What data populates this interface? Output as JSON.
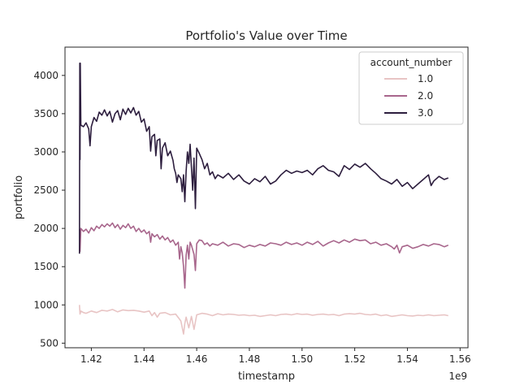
{
  "chart_data": {
    "type": "line",
    "title": "Portfolio's Value over Time",
    "xlabel": "timestamp",
    "ylabel": "portfolio",
    "x_offset_label": "1e9",
    "xlim": [
      1.41,
      1.563
    ],
    "ylim": [
      440,
      4370
    ],
    "x_ticks": [
      1.42,
      1.44,
      1.46,
      1.48,
      1.5,
      1.52,
      1.54,
      1.56
    ],
    "x_tick_labels": [
      "1.42",
      "1.44",
      "1.46",
      "1.48",
      "1.50",
      "1.52",
      "1.54",
      "1.56"
    ],
    "y_ticks": [
      500,
      1000,
      1500,
      2000,
      2500,
      3000,
      3500,
      4000
    ],
    "y_tick_labels": [
      "500",
      "1000",
      "1500",
      "2000",
      "2500",
      "3000",
      "3500",
      "4000"
    ],
    "grid": false,
    "legend": {
      "title": "account_number",
      "placement": "top-right"
    },
    "series": [
      {
        "name": "1.0",
        "color": "#e8c4c4",
        "points": [
          [
            1.4155,
            1000
          ],
          [
            1.4157,
            880
          ],
          [
            1.416,
            920
          ],
          [
            1.417,
            900
          ],
          [
            1.418,
            890
          ],
          [
            1.42,
            920
          ],
          [
            1.422,
            900
          ],
          [
            1.424,
            930
          ],
          [
            1.426,
            920
          ],
          [
            1.428,
            940
          ],
          [
            1.43,
            910
          ],
          [
            1.432,
            935
          ],
          [
            1.434,
            925
          ],
          [
            1.436,
            930
          ],
          [
            1.438,
            920
          ],
          [
            1.44,
            905
          ],
          [
            1.442,
            920
          ],
          [
            1.443,
            860
          ],
          [
            1.444,
            900
          ],
          [
            1.445,
            840
          ],
          [
            1.446,
            890
          ],
          [
            1.448,
            900
          ],
          [
            1.45,
            870
          ],
          [
            1.452,
            880
          ],
          [
            1.454,
            790
          ],
          [
            1.455,
            620
          ],
          [
            1.4555,
            760
          ],
          [
            1.456,
            840
          ],
          [
            1.457,
            700
          ],
          [
            1.458,
            850
          ],
          [
            1.459,
            680
          ],
          [
            1.46,
            870
          ],
          [
            1.462,
            890
          ],
          [
            1.464,
            880
          ],
          [
            1.466,
            860
          ],
          [
            1.468,
            885
          ],
          [
            1.47,
            870
          ],
          [
            1.472,
            880
          ],
          [
            1.474,
            875
          ],
          [
            1.476,
            865
          ],
          [
            1.478,
            870
          ],
          [
            1.48,
            860
          ],
          [
            1.482,
            865
          ],
          [
            1.484,
            850
          ],
          [
            1.486,
            860
          ],
          [
            1.488,
            870
          ],
          [
            1.49,
            860
          ],
          [
            1.492,
            875
          ],
          [
            1.494,
            880
          ],
          [
            1.496,
            870
          ],
          [
            1.498,
            885
          ],
          [
            1.5,
            875
          ],
          [
            1.502,
            880
          ],
          [
            1.504,
            865
          ],
          [
            1.506,
            875
          ],
          [
            1.508,
            880
          ],
          [
            1.51,
            870
          ],
          [
            1.512,
            875
          ],
          [
            1.514,
            860
          ],
          [
            1.516,
            880
          ],
          [
            1.518,
            885
          ],
          [
            1.52,
            880
          ],
          [
            1.522,
            890
          ],
          [
            1.524,
            875
          ],
          [
            1.526,
            870
          ],
          [
            1.528,
            880
          ],
          [
            1.53,
            860
          ],
          [
            1.532,
            870
          ],
          [
            1.534,
            850
          ],
          [
            1.536,
            860
          ],
          [
            1.538,
            870
          ],
          [
            1.54,
            860
          ],
          [
            1.542,
            855
          ],
          [
            1.544,
            865
          ],
          [
            1.546,
            860
          ],
          [
            1.548,
            870
          ],
          [
            1.55,
            860
          ],
          [
            1.552,
            865
          ],
          [
            1.554,
            870
          ],
          [
            1.5555,
            860
          ]
        ]
      },
      {
        "name": "2.0",
        "color": "#a8668c",
        "points": [
          [
            1.4155,
            1990
          ],
          [
            1.4157,
            1700
          ],
          [
            1.416,
            2000
          ],
          [
            1.417,
            1960
          ],
          [
            1.418,
            1990
          ],
          [
            1.419,
            1940
          ],
          [
            1.42,
            2010
          ],
          [
            1.421,
            1970
          ],
          [
            1.422,
            2030
          ],
          [
            1.423,
            2000
          ],
          [
            1.424,
            2050
          ],
          [
            1.425,
            2020
          ],
          [
            1.426,
            2060
          ],
          [
            1.427,
            2030
          ],
          [
            1.428,
            2070
          ],
          [
            1.429,
            2010
          ],
          [
            1.43,
            2050
          ],
          [
            1.431,
            1990
          ],
          [
            1.432,
            2040
          ],
          [
            1.433,
            2010
          ],
          [
            1.434,
            2060
          ],
          [
            1.435,
            2000
          ],
          [
            1.436,
            2030
          ],
          [
            1.437,
            1960
          ],
          [
            1.438,
            2000
          ],
          [
            1.439,
            1950
          ],
          [
            1.44,
            1980
          ],
          [
            1.441,
            1930
          ],
          [
            1.442,
            1960
          ],
          [
            1.4425,
            1820
          ],
          [
            1.443,
            1930
          ],
          [
            1.444,
            1890
          ],
          [
            1.445,
            1920
          ],
          [
            1.446,
            1860
          ],
          [
            1.447,
            1900
          ],
          [
            1.448,
            1850
          ],
          [
            1.449,
            1880
          ],
          [
            1.45,
            1820
          ],
          [
            1.451,
            1850
          ],
          [
            1.452,
            1780
          ],
          [
            1.453,
            1820
          ],
          [
            1.4535,
            1600
          ],
          [
            1.454,
            1760
          ],
          [
            1.4545,
            1680
          ],
          [
            1.455,
            1500
          ],
          [
            1.4555,
            1220
          ],
          [
            1.456,
            1650
          ],
          [
            1.4565,
            1780
          ],
          [
            1.457,
            1600
          ],
          [
            1.4575,
            1820
          ],
          [
            1.458,
            1780
          ],
          [
            1.459,
            1660
          ],
          [
            1.4595,
            1450
          ],
          [
            1.46,
            1800
          ],
          [
            1.461,
            1850
          ],
          [
            1.462,
            1840
          ],
          [
            1.463,
            1790
          ],
          [
            1.464,
            1810
          ],
          [
            1.465,
            1770
          ],
          [
            1.466,
            1800
          ],
          [
            1.468,
            1780
          ],
          [
            1.47,
            1820
          ],
          [
            1.472,
            1770
          ],
          [
            1.474,
            1800
          ],
          [
            1.476,
            1790
          ],
          [
            1.478,
            1750
          ],
          [
            1.48,
            1780
          ],
          [
            1.482,
            1760
          ],
          [
            1.484,
            1790
          ],
          [
            1.486,
            1770
          ],
          [
            1.488,
            1810
          ],
          [
            1.49,
            1800
          ],
          [
            1.492,
            1780
          ],
          [
            1.494,
            1820
          ],
          [
            1.496,
            1790
          ],
          [
            1.498,
            1810
          ],
          [
            1.5,
            1780
          ],
          [
            1.502,
            1820
          ],
          [
            1.504,
            1790
          ],
          [
            1.506,
            1830
          ],
          [
            1.508,
            1770
          ],
          [
            1.51,
            1810
          ],
          [
            1.512,
            1840
          ],
          [
            1.514,
            1810
          ],
          [
            1.516,
            1850
          ],
          [
            1.518,
            1820
          ],
          [
            1.52,
            1860
          ],
          [
            1.522,
            1840
          ],
          [
            1.524,
            1850
          ],
          [
            1.526,
            1800
          ],
          [
            1.528,
            1820
          ],
          [
            1.53,
            1780
          ],
          [
            1.532,
            1800
          ],
          [
            1.534,
            1760
          ],
          [
            1.535,
            1730
          ],
          [
            1.536,
            1780
          ],
          [
            1.537,
            1680
          ],
          [
            1.538,
            1760
          ],
          [
            1.54,
            1780
          ],
          [
            1.542,
            1740
          ],
          [
            1.544,
            1760
          ],
          [
            1.546,
            1790
          ],
          [
            1.548,
            1770
          ],
          [
            1.55,
            1800
          ],
          [
            1.552,
            1790
          ],
          [
            1.554,
            1760
          ],
          [
            1.5555,
            1780
          ]
        ]
      },
      {
        "name": "3.0",
        "color": "#2d1e3e",
        "points": [
          [
            1.4155,
            1670
          ],
          [
            1.4156,
            4160
          ],
          [
            1.4157,
            2900
          ],
          [
            1.4158,
            4160
          ],
          [
            1.416,
            3350
          ],
          [
            1.417,
            3330
          ],
          [
            1.418,
            3380
          ],
          [
            1.419,
            3300
          ],
          [
            1.4195,
            3080
          ],
          [
            1.42,
            3330
          ],
          [
            1.421,
            3450
          ],
          [
            1.422,
            3400
          ],
          [
            1.423,
            3520
          ],
          [
            1.424,
            3480
          ],
          [
            1.425,
            3550
          ],
          [
            1.426,
            3470
          ],
          [
            1.427,
            3530
          ],
          [
            1.428,
            3390
          ],
          [
            1.429,
            3500
          ],
          [
            1.43,
            3540
          ],
          [
            1.431,
            3420
          ],
          [
            1.432,
            3560
          ],
          [
            1.433,
            3490
          ],
          [
            1.434,
            3570
          ],
          [
            1.435,
            3510
          ],
          [
            1.436,
            3580
          ],
          [
            1.437,
            3480
          ],
          [
            1.438,
            3530
          ],
          [
            1.439,
            3390
          ],
          [
            1.44,
            3430
          ],
          [
            1.441,
            3270
          ],
          [
            1.442,
            3330
          ],
          [
            1.4425,
            3010
          ],
          [
            1.443,
            3200
          ],
          [
            1.444,
            3230
          ],
          [
            1.4445,
            2950
          ],
          [
            1.445,
            3150
          ],
          [
            1.446,
            3170
          ],
          [
            1.4465,
            2780
          ],
          [
            1.447,
            3050
          ],
          [
            1.448,
            3120
          ],
          [
            1.449,
            2950
          ],
          [
            1.45,
            3010
          ],
          [
            1.451,
            2890
          ],
          [
            1.4515,
            2780
          ],
          [
            1.452,
            2720
          ],
          [
            1.4525,
            2600
          ],
          [
            1.453,
            2700
          ],
          [
            1.454,
            2650
          ],
          [
            1.4545,
            2480
          ],
          [
            1.455,
            2700
          ],
          [
            1.4555,
            2350
          ],
          [
            1.456,
            2750
          ],
          [
            1.4565,
            3000
          ],
          [
            1.457,
            2850
          ],
          [
            1.4575,
            3100
          ],
          [
            1.458,
            2800
          ],
          [
            1.4585,
            2500
          ],
          [
            1.459,
            2920
          ],
          [
            1.4595,
            2260
          ],
          [
            1.46,
            3050
          ],
          [
            1.461,
            2980
          ],
          [
            1.462,
            2900
          ],
          [
            1.463,
            2780
          ],
          [
            1.464,
            2850
          ],
          [
            1.465,
            2700
          ],
          [
            1.466,
            2740
          ],
          [
            1.467,
            2650
          ],
          [
            1.468,
            2700
          ],
          [
            1.47,
            2660
          ],
          [
            1.472,
            2720
          ],
          [
            1.474,
            2640
          ],
          [
            1.476,
            2700
          ],
          [
            1.478,
            2620
          ],
          [
            1.48,
            2580
          ],
          [
            1.482,
            2650
          ],
          [
            1.484,
            2610
          ],
          [
            1.486,
            2680
          ],
          [
            1.488,
            2580
          ],
          [
            1.49,
            2620
          ],
          [
            1.492,
            2700
          ],
          [
            1.494,
            2760
          ],
          [
            1.496,
            2720
          ],
          [
            1.498,
            2750
          ],
          [
            1.5,
            2730
          ],
          [
            1.502,
            2760
          ],
          [
            1.504,
            2700
          ],
          [
            1.506,
            2780
          ],
          [
            1.508,
            2820
          ],
          [
            1.51,
            2760
          ],
          [
            1.512,
            2740
          ],
          [
            1.514,
            2680
          ],
          [
            1.516,
            2820
          ],
          [
            1.518,
            2770
          ],
          [
            1.52,
            2840
          ],
          [
            1.522,
            2800
          ],
          [
            1.524,
            2850
          ],
          [
            1.526,
            2780
          ],
          [
            1.528,
            2720
          ],
          [
            1.53,
            2650
          ],
          [
            1.532,
            2620
          ],
          [
            1.534,
            2580
          ],
          [
            1.536,
            2640
          ],
          [
            1.538,
            2550
          ],
          [
            1.54,
            2600
          ],
          [
            1.542,
            2520
          ],
          [
            1.544,
            2580
          ],
          [
            1.546,
            2640
          ],
          [
            1.548,
            2700
          ],
          [
            1.549,
            2560
          ],
          [
            1.55,
            2620
          ],
          [
            1.552,
            2680
          ],
          [
            1.554,
            2640
          ],
          [
            1.5555,
            2660
          ]
        ]
      }
    ]
  }
}
